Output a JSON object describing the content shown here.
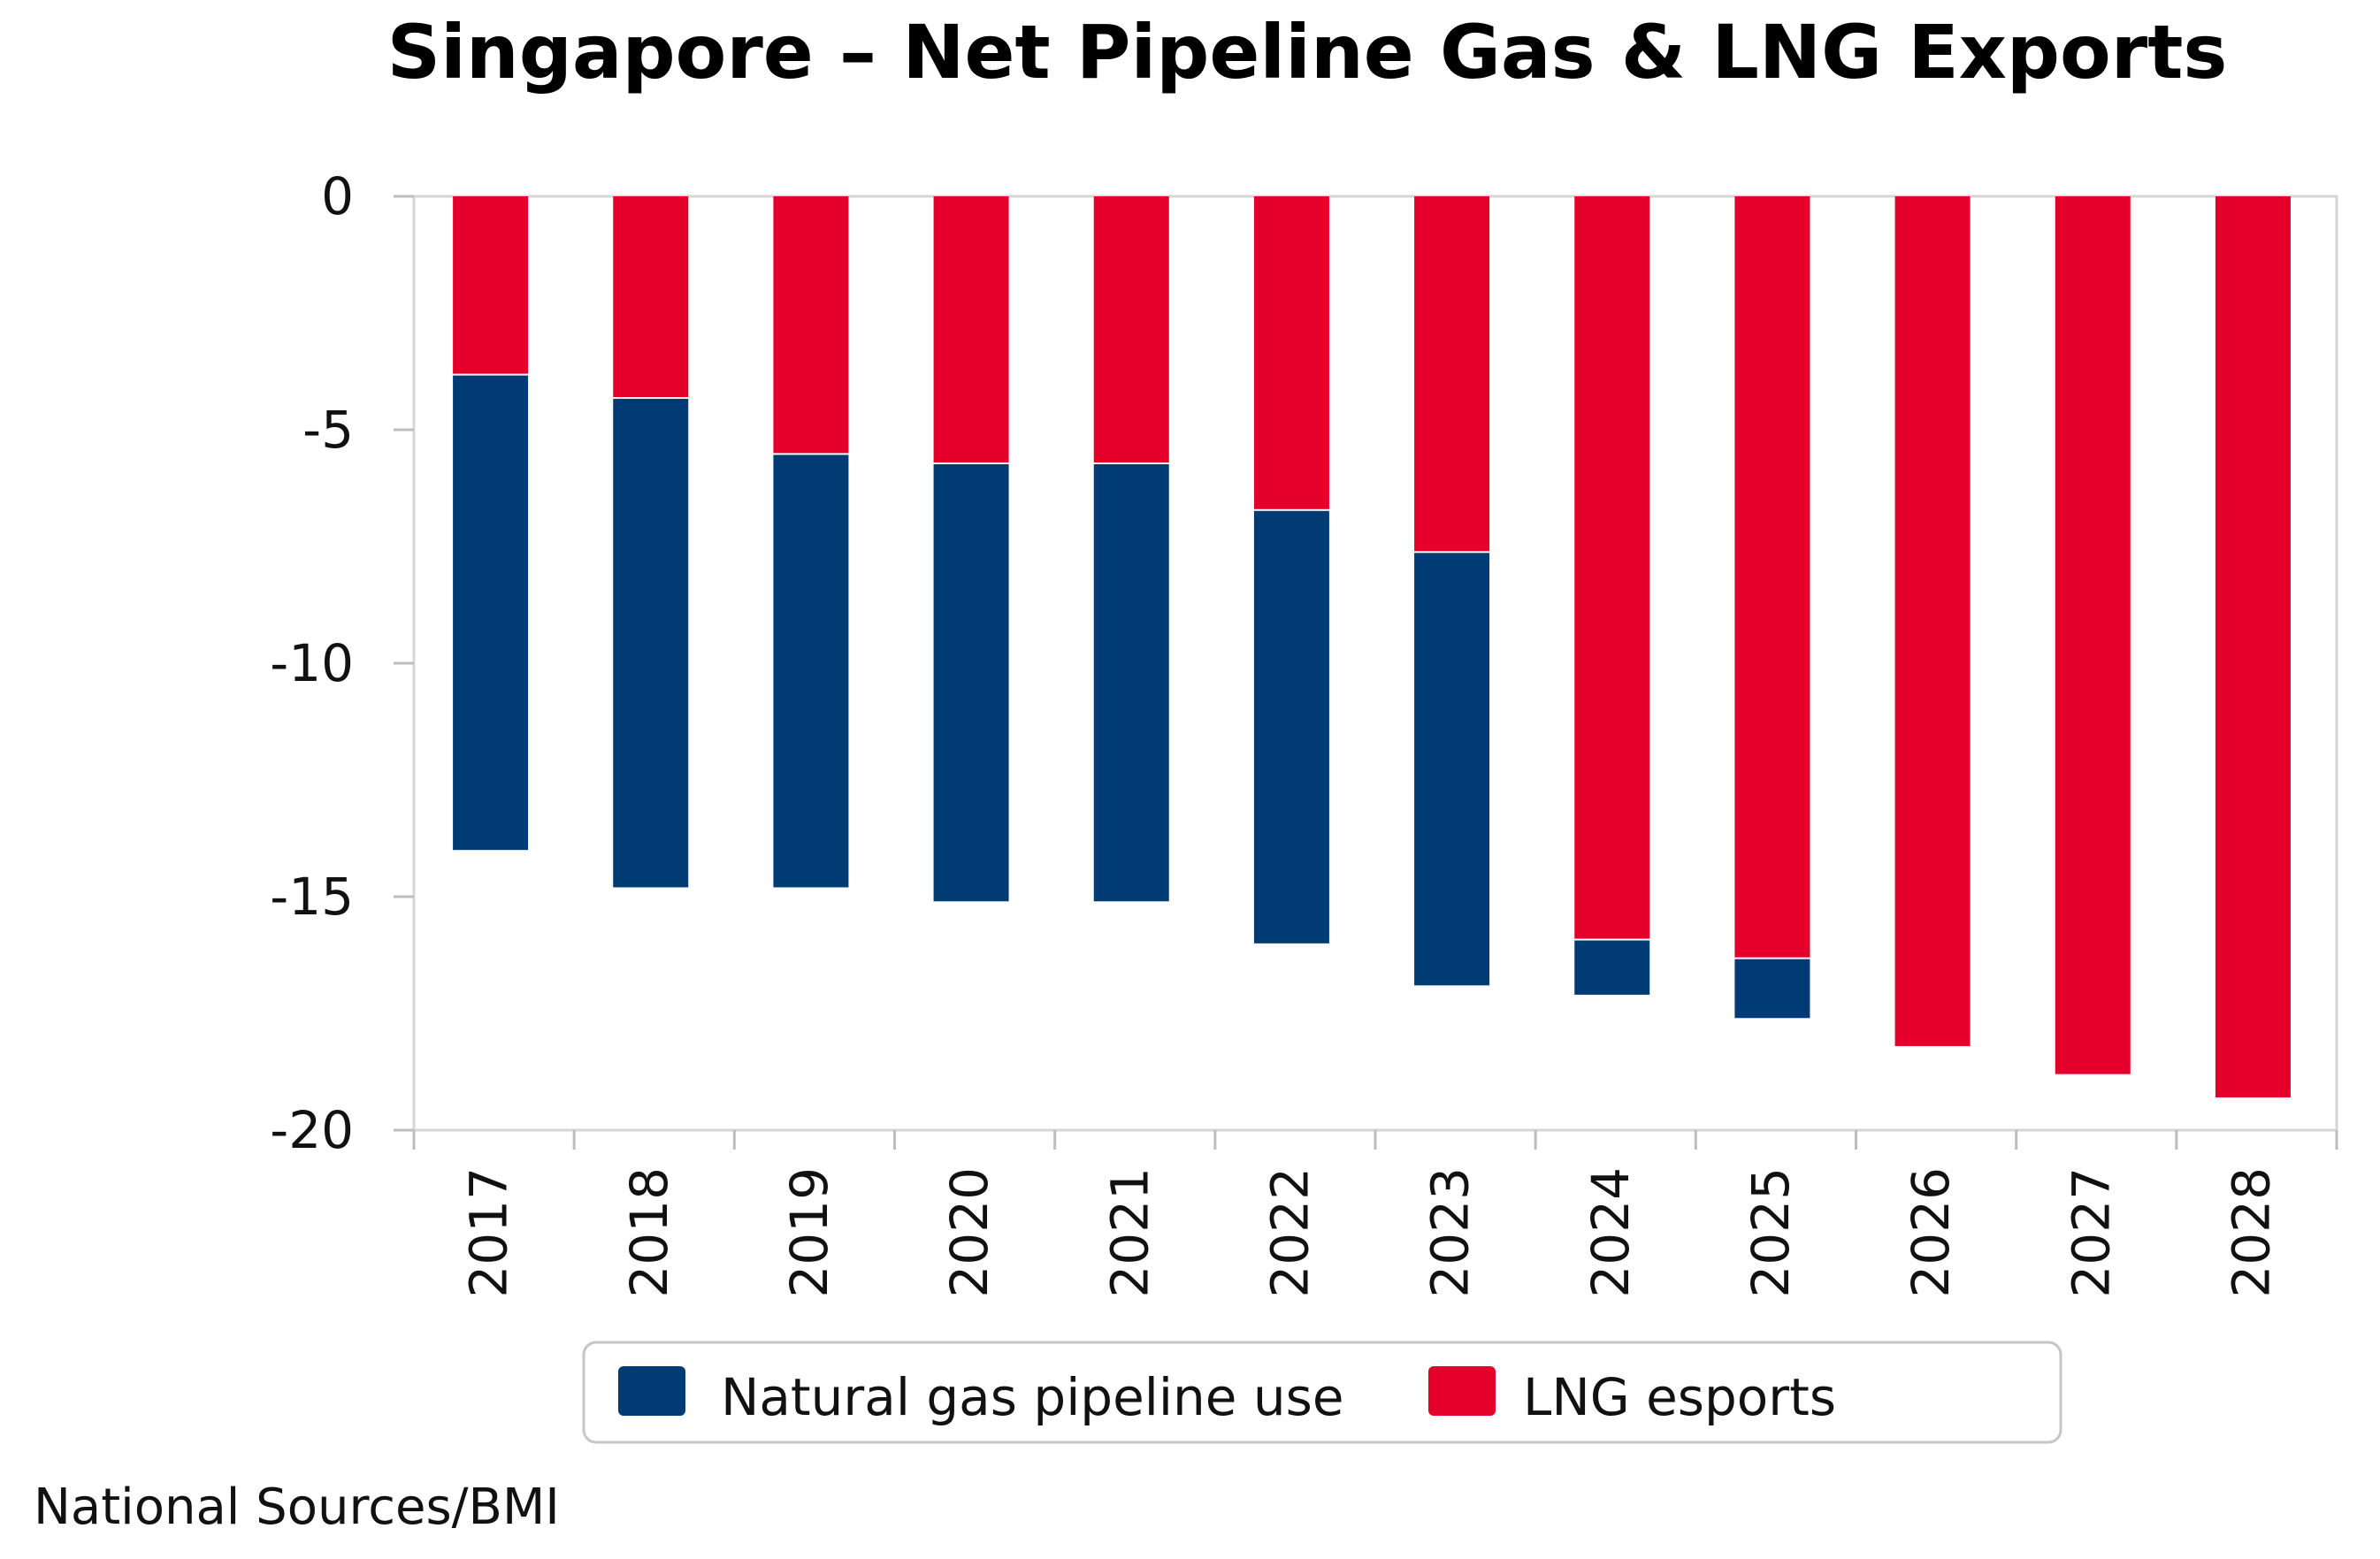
{
  "chart_data": {
    "type": "bar",
    "stacked": true,
    "title": "Singapore – Net Pipeline Gas & LNG Exports",
    "xlabel": "",
    "ylabel": "",
    "categories": [
      "2017",
      "2018",
      "2019",
      "2020",
      "2021",
      "2022",
      "2023",
      "2024",
      "2025",
      "2026",
      "2027",
      "2028"
    ],
    "series": [
      {
        "name": "LNG esports",
        "color": "#E4002B",
        "values": [
          -3.8,
          -4.3,
          -5.5,
          -5.7,
          -5.7,
          -6.7,
          -7.6,
          -15.9,
          -16.3,
          -18.2,
          -18.8,
          -19.3
        ]
      },
      {
        "name": "Natural gas pipeline use",
        "color": "#003B73",
        "values": [
          -10.2,
          -10.5,
          -9.3,
          -9.4,
          -9.4,
          -9.3,
          -9.3,
          -1.2,
          -1.3,
          0,
          0,
          0
        ]
      }
    ],
    "ylim": [
      -20,
      0
    ],
    "yticks": [
      "0",
      "-5",
      "-10",
      "-15",
      "-20"
    ],
    "ytick_values": [
      0,
      -5,
      -10,
      -15,
      -20
    ],
    "legend_position": "bottom",
    "source": "National Sources/BMI"
  }
}
